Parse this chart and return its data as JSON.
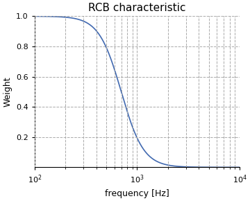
{
  "title": "RCB characteristic",
  "xlabel": "frequency [Hz]",
  "ylabel": "Weight",
  "xmin": 100,
  "xmax": 10000,
  "ymin": 0,
  "ymax": 1.0,
  "f0": 700,
  "n": 4.0,
  "line_color": "#4169b0",
  "line_width": 1.2,
  "background_color": "#ffffff",
  "yticks": [
    0.2,
    0.4,
    0.6,
    0.8,
    1.0
  ],
  "title_fontsize": 11,
  "label_fontsize": 9,
  "tick_fontsize": 8,
  "grid_color": "#aaaaaa",
  "grid_linestyle": "--",
  "grid_linewidth": 0.7
}
